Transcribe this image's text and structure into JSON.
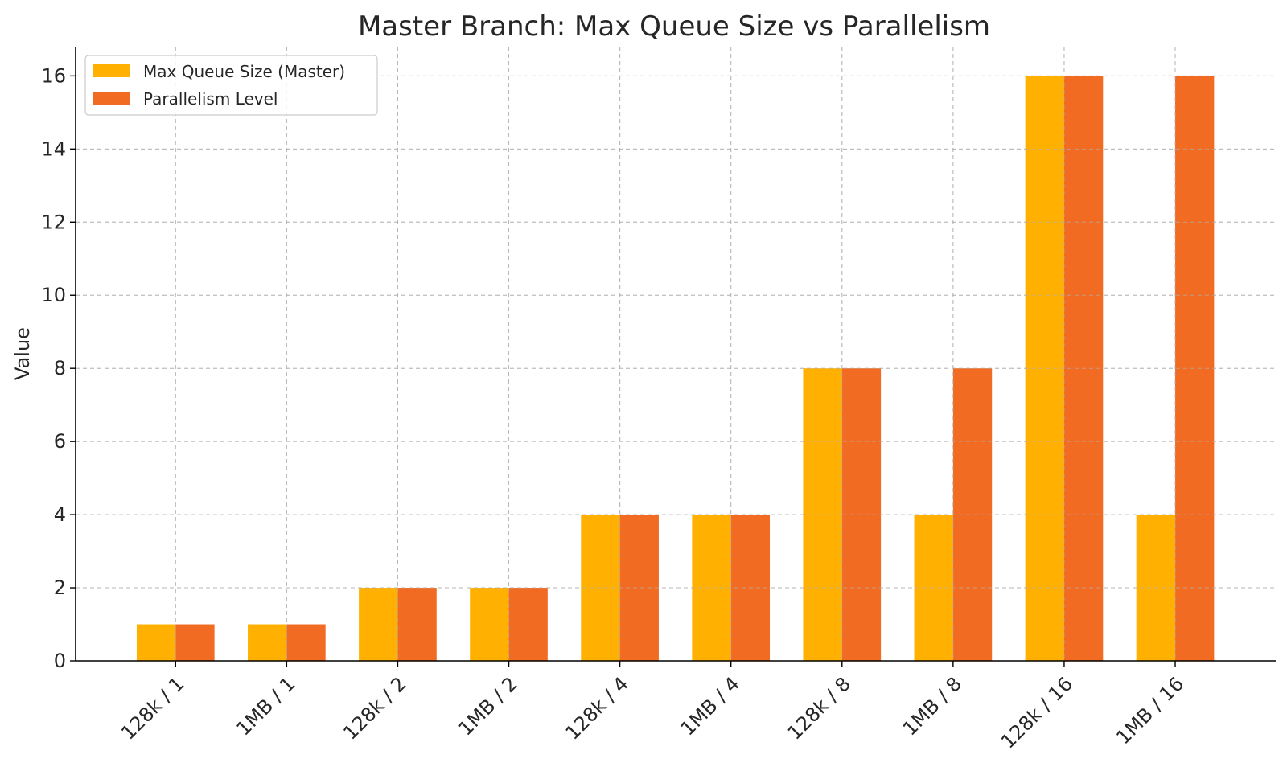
{
  "chart_data": {
    "type": "bar",
    "title": "Master Branch: Max Queue Size vs Parallelism",
    "xlabel": "",
    "ylabel": "Value",
    "categories": [
      "128k / 1",
      "1MB / 1",
      "128k / 2",
      "1MB / 2",
      "128k / 4",
      "1MB / 4",
      "128k / 8",
      "1MB / 8",
      "128k / 16",
      "1MB / 16"
    ],
    "series": [
      {
        "name": "Max Queue Size (Master)",
        "values": [
          1,
          1,
          2,
          2,
          4,
          4,
          8,
          4,
          16,
          4
        ],
        "color": "#FFB000"
      },
      {
        "name": "Parallelism Level",
        "values": [
          1,
          1,
          2,
          2,
          4,
          4,
          8,
          8,
          16,
          16
        ],
        "color": "#F26B22"
      }
    ],
    "ylim": [
      0,
      16.8
    ],
    "yticks": [
      0,
      2,
      4,
      6,
      8,
      10,
      12,
      14,
      16
    ],
    "grid": true,
    "legend_position": "top-left"
  }
}
